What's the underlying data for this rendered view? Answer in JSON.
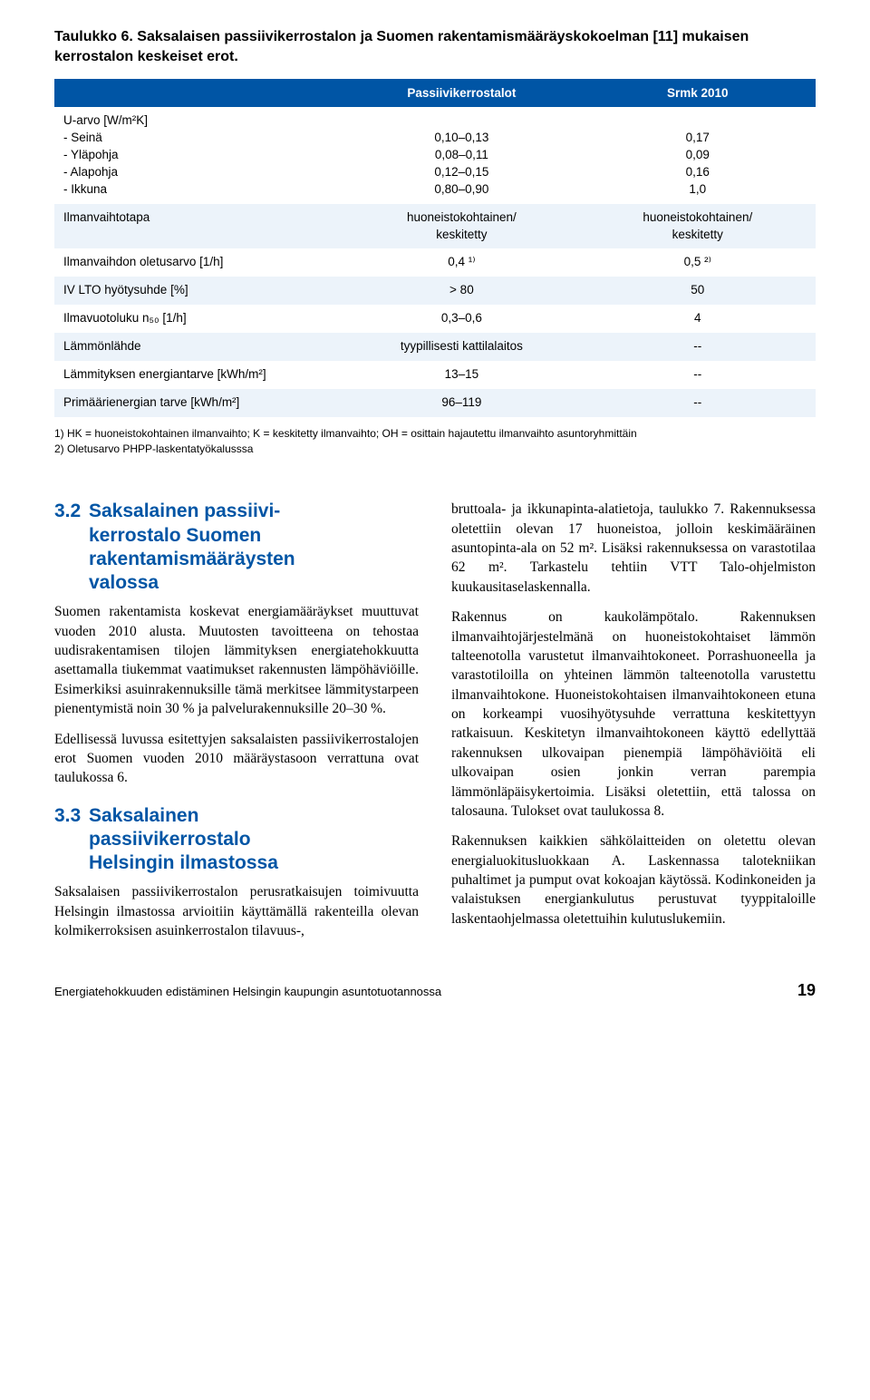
{
  "table": {
    "title": "Taulukko 6. Saksalaisen passiivikerrostalon ja Suomen rakentamismääräyskokoelman [11] mukaisen kerrostalon keskeiset erot.",
    "head": {
      "c1": "",
      "c2": "Passiivikerrostalot",
      "c3": "Srmk 2010"
    },
    "rows": [
      {
        "cls": "odd",
        "c1": "U-arvo [W/m²K]\n- Seinä\n- Yläpohja\n- Alapohja\n- Ikkuna",
        "c2": "\n0,10–0,13\n0,08–0,11\n0,12–0,15\n0,80–0,90",
        "c3": "\n0,17\n0,09\n0,16\n1,0"
      },
      {
        "cls": "even",
        "c1": "Ilmanvaihtotapa",
        "c2": "huoneistokohtainen/\nkeskitetty",
        "c3": "huoneistokohtainen/\nkeskitetty"
      },
      {
        "cls": "odd",
        "c1": "Ilmanvaihdon oletusarvo [1/h]",
        "c2": "0,4 ¹⁾",
        "c3": "0,5 ²⁾"
      },
      {
        "cls": "even",
        "c1": "IV LTO hyötysuhde [%]",
        "c2": "> 80",
        "c3": "50"
      },
      {
        "cls": "odd",
        "c1": "Ilmavuotoluku n₅₀ [1/h]",
        "c2": "0,3–0,6",
        "c3": "4"
      },
      {
        "cls": "even",
        "c1": "Lämmönlähde",
        "c2": "tyypillisesti kattilalaitos",
        "c3": "--"
      },
      {
        "cls": "odd",
        "c1": "Lämmityksen energiantarve [kWh/m²]",
        "c2": "13–15",
        "c3": "--"
      },
      {
        "cls": "even",
        "c1": "Primäärienergian tarve [kWh/m²]",
        "c2": "96–119",
        "c3": "--"
      }
    ],
    "footnotes": [
      "1)  HK = huoneistokohtainen ilmanvaihto; K = keskitetty ilmanvaihto; OH = osittain hajautettu ilmanvaihto asuntoryhmittäin",
      "2)  Oletusarvo PHPP-laskentatyökalusssa"
    ]
  },
  "left": {
    "h1_num": "3.2",
    "h1_txt": "Saksalainen passiivi-\nkerrostalo Suomen\nrakentamismääräysten\nvalossa",
    "p1": "Suomen rakentamista koskevat energiamääräykset muuttuvat vuoden 2010 alusta. Muutosten tavoitteena on tehostaa uudisrakentamisen tilojen lämmityksen energiatehokkuutta asettamalla tiukemmat vaatimukset rakennusten lämpöhäviöille. Esimerkiksi asuinrakennuksille tämä merkitsee lämmitystarpeen pienentymistä noin 30 % ja palvelurakennuksille 20–30 %.",
    "p2": "Edellisessä luvussa esitettyjen saksalaisten passiivikerrostalojen erot Suomen vuoden 2010 määräystasoon verrattuna ovat taulukossa 6.",
    "h2_num": "3.3",
    "h2_txt": "Saksalainen\npassiivikerrostalo\nHelsingin ilmastossa",
    "p3": "Saksalaisen passiivikerrostalon perusratkaisujen toimivuutta Helsingin ilmastossa arvioitiin käyttämällä rakenteilla olevan kolmikerroksisen asuinkerrostalon tilavuus-,"
  },
  "right": {
    "p1": "bruttoala- ja ikkunapinta-alatietoja, taulukko 7. Rakennuksessa oletettiin olevan 17 huoneistoa, jolloin keskimääräinen asuntopinta-ala on 52 m². Lisäksi rakennuksessa on varastotilaa 62 m². Tarkastelu tehtiin VTT Talo-ohjelmiston kuukausitaselaskennalla.",
    "p2": "Rakennus on kaukolämpötalo. Rakennuksen ilmanvaihtojärjestelmänä on huoneistokohtaiset lämmön talteenotolla varustetut ilmanvaihtokoneet. Porrashuoneella ja varastotiloilla on yhteinen lämmön talteenotolla varustettu ilmanvaihtokone. Huoneistokohtaisen ilmanvaihtokoneen etuna on korkeampi vuosihyötysuhde verrattuna keskitettyyn ratkaisuun. Keskitetyn ilmanvaihtokoneen käyttö edellyttää rakennuksen ulkovaipan pienempiä lämpöhäviöitä eli ulkovaipan osien jonkin verran parempia lämmönläpäisykertoimia. Lisäksi oletettiin, että talossa on talosauna. Tulokset ovat taulukossa 8.",
    "p3": "Rakennuksen kaikkien sähkölaitteiden on oletettu olevan energialuokitusluokkaan A. Laskennassa talotekniikan puhaltimet ja pumput ovat kokoajan käytössä. Kodinkoneiden ja valaistuksen energiankulutus perustuvat tyyppitaloille laskentaohjelmassa oletettuihin kulutuslukemiin."
  },
  "footer": {
    "title": "Energiatehokkuuden edistäminen Helsingin kaupungin asuntotuotannossa",
    "page": "19"
  }
}
